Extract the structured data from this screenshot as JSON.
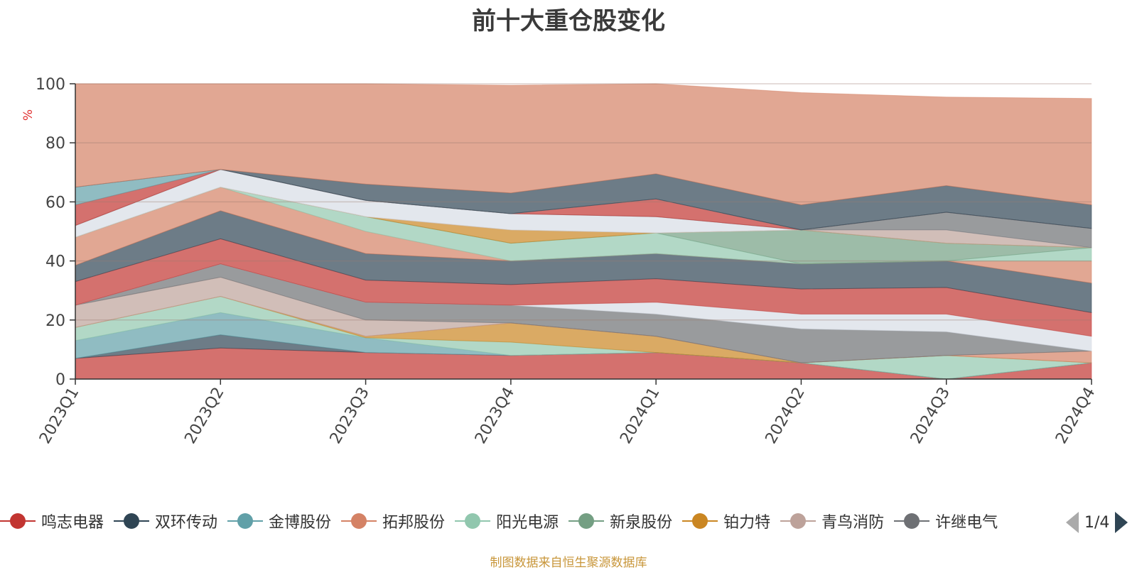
{
  "title": "前十大重仓股变化",
  "source_note": "制图数据来自恒生聚源数据库",
  "pager": {
    "text": "1/4"
  },
  "chart_data": {
    "type": "area",
    "stacked": true,
    "title": "前十大重仓股变化",
    "ylabel": "%",
    "xlabel": "",
    "ylim": [
      0,
      100
    ],
    "yticks": [
      0,
      20,
      40,
      60,
      80,
      100
    ],
    "categories": [
      "2023Q1",
      "2023Q2",
      "2023Q3",
      "2023Q4",
      "2024Q1",
      "2024Q2",
      "2024Q3",
      "2024Q4"
    ],
    "legend": [
      {
        "name": "鸣志电器",
        "color": "#c23531"
      },
      {
        "name": "双环传动",
        "color": "#2f4554"
      },
      {
        "name": "金博股份",
        "color": "#61a0a8"
      },
      {
        "name": "拓邦股份",
        "color": "#d48265"
      },
      {
        "name": "阳光电源",
        "color": "#91c7ae"
      },
      {
        "name": "新泉股份",
        "color": "#749f83"
      },
      {
        "name": "铂力特",
        "color": "#ca8622"
      },
      {
        "name": "青鸟消防",
        "color": "#bda29a"
      },
      {
        "name": "许继电气",
        "color": "#6e7074"
      }
    ],
    "series": [
      {
        "color": "#c23531",
        "values": [
          7,
          10.5,
          9,
          8,
          9,
          5.5,
          0,
          5.5
        ]
      },
      {
        "color": "#2f4554",
        "values": [
          0,
          4.5,
          0,
          0,
          0,
          0,
          0,
          0
        ]
      },
      {
        "color": "#61a0a8",
        "values": [
          6,
          7.5,
          5,
          0,
          0,
          0,
          0,
          0
        ]
      },
      {
        "color": "#91c7ae",
        "values": [
          4.5,
          5.5,
          0,
          4.5,
          0,
          0,
          8,
          0
        ]
      },
      {
        "color": "#ca8622",
        "values": [
          0,
          0,
          0.5,
          6.5,
          5.5,
          0,
          0,
          0
        ]
      },
      {
        "color": "#d48265",
        "values": [
          0,
          0,
          0,
          0,
          0,
          0,
          0,
          4
        ]
      },
      {
        "color": "#bda29a",
        "values": [
          7.5,
          6.5,
          5.5,
          0,
          0,
          0,
          0,
          0
        ]
      },
      {
        "color": "#6e7074",
        "values": [
          0,
          4.5,
          6,
          6,
          7.5,
          11.5,
          8,
          0
        ]
      },
      {
        "color": "#d7dde5",
        "values": [
          0,
          0,
          0,
          0,
          4,
          5,
          6,
          5
        ]
      },
      {
        "color": "#c23531",
        "values": [
          8,
          8.5,
          7.5,
          7,
          8,
          8.5,
          9,
          8
        ]
      },
      {
        "color": "#2f4554",
        "values": [
          5.5,
          9.5,
          9,
          8,
          8.5,
          8.5,
          9,
          10
        ]
      },
      {
        "color": "#d48265",
        "values": [
          9.5,
          8,
          7.5,
          0,
          0,
          0,
          0,
          7.5
        ]
      },
      {
        "color": "#91c7ae",
        "values": [
          0,
          0,
          5,
          6,
          7,
          0,
          0,
          4.5
        ]
      },
      {
        "color": "#749f83",
        "values": [
          0,
          0,
          0,
          0,
          0,
          11.5,
          6,
          0
        ]
      },
      {
        "color": "#ca8622",
        "values": [
          0,
          0,
          0,
          4.5,
          0,
          0,
          0,
          0
        ]
      },
      {
        "color": "#bda29a",
        "values": [
          0,
          0,
          0,
          0,
          0,
          0,
          4.5,
          0
        ]
      },
      {
        "color": "#d7dde5",
        "values": [
          4,
          6,
          5.5,
          5.5,
          5.5,
          0,
          0,
          0
        ]
      },
      {
        "color": "#6e7074",
        "values": [
          0,
          0,
          0,
          0,
          0,
          0,
          6,
          6.5
        ]
      },
      {
        "color": "#c23531",
        "values": [
          7,
          0,
          0,
          0,
          6,
          0,
          0,
          0
        ]
      },
      {
        "color": "#61a0a8",
        "values": [
          6,
          0,
          0,
          0,
          0,
          0,
          0,
          0
        ]
      },
      {
        "color": "#2f4554",
        "values": [
          0,
          0,
          5.5,
          7,
          8.5,
          8.5,
          9,
          8
        ]
      },
      {
        "color": "#d48265",
        "values": [
          35,
          29,
          34,
          36.5,
          30.5,
          38,
          30,
          36
        ]
      }
    ]
  }
}
